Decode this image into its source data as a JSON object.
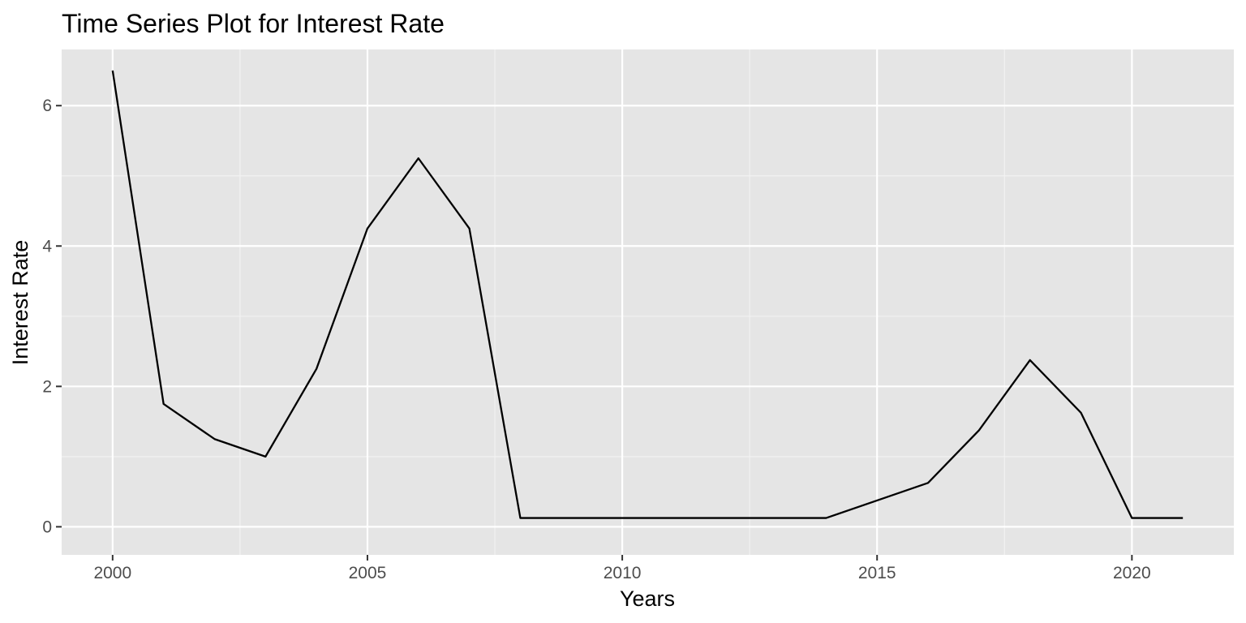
{
  "chart_data": {
    "type": "line",
    "title": "Time Series Plot for Interest Rate",
    "xlabel": "Years",
    "ylabel": "Interest Rate",
    "xlim": [
      1999,
      2022
    ],
    "ylim": [
      -0.4,
      6.8
    ],
    "x_ticks": [
      2000,
      2005,
      2010,
      2015,
      2020
    ],
    "x_tick_labels": [
      "2000",
      "2005",
      "2010",
      "2015",
      "2020"
    ],
    "y_ticks": [
      0,
      2,
      4,
      6
    ],
    "y_tick_labels": [
      "0",
      "2",
      "4",
      "6"
    ],
    "grid": true,
    "legend": "none",
    "colors": {
      "panel_background": "#e5e5e5",
      "grid_major": "#ffffff",
      "grid_minor": "#f2f2f2",
      "line": "#000000",
      "tick_text": "#4d4d4d",
      "tick_mark": "#333333"
    },
    "series": [
      {
        "x": [
          2000,
          2001,
          2002,
          2003,
          2004,
          2005,
          2006,
          2007,
          2008,
          2009,
          2010,
          2011,
          2012,
          2013,
          2014,
          2015,
          2016,
          2017,
          2018,
          2019,
          2020,
          2021
        ],
        "values": [
          6.5,
          1.75,
          1.25,
          1.0,
          2.25,
          4.25,
          5.25,
          4.25,
          0.125,
          0.125,
          0.125,
          0.125,
          0.125,
          0.125,
          0.125,
          0.375,
          0.625,
          1.375,
          2.375,
          1.625,
          0.125,
          0.125
        ]
      }
    ]
  }
}
